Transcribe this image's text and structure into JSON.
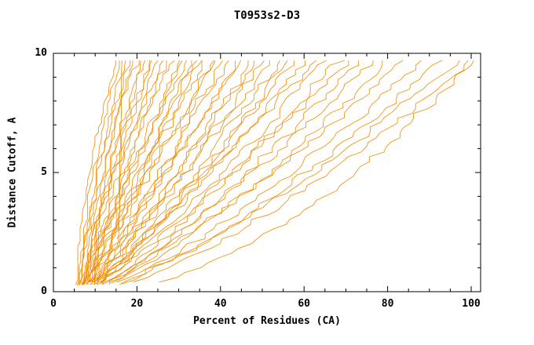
{
  "chart_data": {
    "type": "line",
    "title": "T0953s2-D3",
    "xlabel": "Percent of Residues (CA)",
    "ylabel": "Distance Cutoff, A",
    "xlim": [
      0,
      100
    ],
    "ylim": [
      0,
      10
    ],
    "xticks": [
      0,
      20,
      40,
      60,
      80,
      100
    ],
    "yticks": [
      0,
      5,
      10
    ],
    "x_minor_step": 5,
    "y_minor_step": 1,
    "grid": false,
    "legend": "none",
    "line_color": "#f08a00",
    "axis_color": "#000000",
    "curve_top_cutoff": 9.7,
    "series": [
      {
        "start": 5.2,
        "end": 15,
        "shape": 1.6,
        "y0": 0.3
      },
      {
        "start": 5.8,
        "end": 16,
        "shape": 1.5,
        "y0": 0.25
      },
      {
        "start": 15.4,
        "end": 16.1,
        "shape": 1.0,
        "y0": 2.2
      },
      {
        "start": 6.2,
        "end": 17,
        "shape": 1.45,
        "y0": 0.3
      },
      {
        "start": 6.6,
        "end": 18,
        "shape": 1.5,
        "y0": 0.35
      },
      {
        "start": 7.0,
        "end": 19,
        "shape": 1.35,
        "y0": 0.3
      },
      {
        "start": 6.0,
        "end": 20,
        "shape": 1.4,
        "y0": 0.25
      },
      {
        "start": 7.2,
        "end": 21,
        "shape": 1.3,
        "y0": 0.4
      },
      {
        "start": 7.6,
        "end": 22,
        "shape": 1.35,
        "y0": 0.3
      },
      {
        "start": 6.4,
        "end": 23,
        "shape": 1.25,
        "y0": 0.3
      },
      {
        "start": 7.0,
        "end": 24,
        "shape": 1.3,
        "y0": 0.35
      },
      {
        "start": 8.0,
        "end": 25,
        "shape": 1.2,
        "y0": 0.4
      },
      {
        "start": 6.8,
        "end": 26,
        "shape": 1.3,
        "y0": 0.3
      },
      {
        "start": 7.9,
        "end": 27,
        "shape": 1.15,
        "y0": 0.35
      },
      {
        "start": 7.4,
        "end": 28,
        "shape": 1.2,
        "y0": 0.3
      },
      {
        "start": 8.1,
        "end": 30,
        "shape": 1.2,
        "y0": 0.4
      },
      {
        "start": 6.6,
        "end": 31,
        "shape": 1.1,
        "y0": 0.3
      },
      {
        "start": 7.1,
        "end": 32,
        "shape": 1.2,
        "y0": 0.3
      },
      {
        "start": 8.4,
        "end": 33,
        "shape": 1.05,
        "y0": 0.4
      },
      {
        "start": 7.0,
        "end": 34,
        "shape": 1.1,
        "y0": 0.3
      },
      {
        "start": 7.9,
        "end": 35,
        "shape": 1.0,
        "y0": 0.35
      },
      {
        "start": 7.5,
        "end": 36,
        "shape": 1.1,
        "y0": 0.3
      },
      {
        "start": 8.0,
        "end": 38,
        "shape": 1.05,
        "y0": 0.4
      },
      {
        "start": 7.1,
        "end": 39,
        "shape": 1.1,
        "y0": 0.3
      },
      {
        "start": 8.5,
        "end": 40,
        "shape": 0.95,
        "y0": 0.4
      },
      {
        "start": 7.4,
        "end": 42,
        "shape": 1.0,
        "y0": 0.3
      },
      {
        "start": 8.0,
        "end": 44,
        "shape": 0.95,
        "y0": 0.35
      },
      {
        "start": 7.0,
        "end": 45,
        "shape": 1.0,
        "y0": 0.3
      },
      {
        "start": 8.2,
        "end": 47,
        "shape": 0.9,
        "y0": 0.4
      },
      {
        "start": 7.6,
        "end": 48,
        "shape": 0.95,
        "y0": 0.3
      },
      {
        "start": 8.0,
        "end": 50,
        "shape": 0.9,
        "y0": 0.35
      },
      {
        "start": 7.2,
        "end": 52,
        "shape": 0.95,
        "y0": 0.3
      },
      {
        "start": 8.6,
        "end": 54,
        "shape": 0.9,
        "y0": 0.4
      },
      {
        "start": 7.5,
        "end": 56,
        "shape": 0.85,
        "y0": 0.3
      },
      {
        "start": 8.0,
        "end": 58,
        "shape": 0.9,
        "y0": 0.35
      },
      {
        "start": 7.0,
        "end": 60,
        "shape": 0.85,
        "y0": 0.3
      },
      {
        "start": 8.1,
        "end": 62,
        "shape": 0.9,
        "y0": 0.4
      },
      {
        "start": 7.6,
        "end": 65,
        "shape": 0.85,
        "y0": 0.3
      },
      {
        "start": 8.0,
        "end": 68,
        "shape": 0.8,
        "y0": 0.35
      },
      {
        "start": 7.1,
        "end": 70,
        "shape": 0.85,
        "y0": 0.3
      },
      {
        "start": 8.2,
        "end": 73,
        "shape": 0.8,
        "y0": 0.4
      },
      {
        "start": 7.5,
        "end": 76,
        "shape": 0.8,
        "y0": 0.3
      },
      {
        "start": 8.0,
        "end": 80,
        "shape": 0.75,
        "y0": 0.35
      },
      {
        "start": 7.0,
        "end": 84,
        "shape": 0.8,
        "y0": 0.3
      },
      {
        "start": 8.3,
        "end": 88,
        "shape": 0.75,
        "y0": 0.4
      },
      {
        "start": 7.6,
        "end": 92,
        "shape": 0.7,
        "y0": 0.3
      },
      {
        "start": 8.0,
        "end": 97,
        "shape": 0.75,
        "y0": 0.35
      },
      {
        "start": 8.6,
        "end": 100,
        "shape": 0.7,
        "y0": 0.4
      },
      {
        "start": 9.0,
        "end": 100,
        "shape": 0.55,
        "y0": 0.4
      }
    ]
  }
}
